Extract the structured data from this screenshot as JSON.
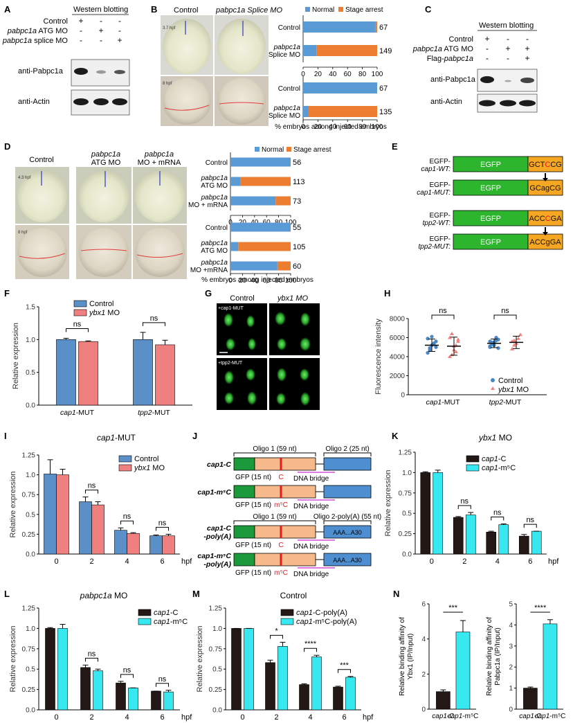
{
  "colors": {
    "normal": "#5b9bd5",
    "arrest": "#ed7d31",
    "control_bar": "#5b8fc7",
    "ybx1_bar": "#f08080",
    "cap1c_bar": "#231815",
    "cap1m_bar": "#38e8f0",
    "egfp_green": "#2db52d",
    "motif_orange": "#f5a623",
    "oligo_green": "#1a9a3a",
    "oligo_orange": "#f5b98c",
    "oligo_blue": "#4d8fd1",
    "bridge_magenta": "#e07ae0",
    "site_red": "#e41a1c"
  },
  "panelA": {
    "label": "A",
    "header": "Western blotting",
    "rows": [
      {
        "name": "Control",
        "marks": [
          "+",
          "-",
          "-"
        ]
      },
      {
        "name": "pabpc1a ATG MO",
        "marks": [
          "-",
          "+",
          "-"
        ]
      },
      {
        "name": "pabpc1a splice MO",
        "marks": [
          "-",
          "-",
          "+"
        ]
      }
    ],
    "blots": [
      "anti-Pabpc1a",
      "anti-Actin"
    ]
  },
  "panelB": {
    "label": "B",
    "col1": "Control",
    "col2": "pabpc1a Splice MO",
    "time1": "3.7 hpf",
    "time2": "8 hpf",
    "legend": [
      "Normal",
      "Stage arrest"
    ],
    "xlabel": "% embryos among injected embryos",
    "ticks": [
      "0",
      "20",
      "40",
      "60",
      "80",
      "100"
    ]
  },
  "panelC": {
    "label": "C",
    "header": "Western blotting",
    "rows": [
      {
        "name": "Control",
        "marks": [
          "+",
          "-",
          "-"
        ]
      },
      {
        "name": "pabpc1a ATG MO",
        "marks": [
          "-",
          "+",
          "+"
        ]
      },
      {
        "name": "Flag-pabpc1a",
        "marks": [
          "-",
          "-",
          "+"
        ]
      }
    ],
    "blots": [
      "anti-Pabpc1a",
      "anti-Actin"
    ]
  },
  "panelD": {
    "label": "D",
    "col1": "Control",
    "col2": "pabpc1a ATG MO",
    "col3": "pabpc1a MO + mRNA",
    "time1": "4.3 hpf",
    "time2": "8 hpf",
    "legend": [
      "Normal",
      "Stage arrest"
    ],
    "xlabel": "% embryos among injected embryos",
    "ticks": [
      "0",
      "20",
      "40",
      "60",
      "80",
      "100"
    ]
  },
  "panelE": {
    "label": "E",
    "constructs": [
      {
        "name1": "EGFP-",
        "name2": "cap1-WT:",
        "box": "EGFP",
        "motif_a": "GCT",
        "motif_b": "C",
        "motif_c": "CG"
      },
      {
        "name1": "EGFP-",
        "name2": "cap1-MUT:",
        "box": "EGFP",
        "motif_a": "GCag",
        "motif_b": "",
        "motif_c": "CG"
      },
      {
        "name1": "EGFP-",
        "name2": "tpp2-WT:",
        "box": "EGFP",
        "motif_a": "ACC",
        "motif_b": "C",
        "motif_c": "GA"
      },
      {
        "name1": "EGFP-",
        "name2": "tpp2-MUT:",
        "box": "EGFP",
        "motif_a": "ACCg",
        "motif_b": "",
        "motif_c": "GA"
      }
    ]
  },
  "panelG": {
    "label": "G",
    "col1": "Control",
    "col2": "ybx1 MO",
    "row1": "+cap1-MUT",
    "row2": "+tpp2-MUT"
  },
  "panelJ": {
    "label": "J",
    "oligo1": "Oligo 1 (59 nt)",
    "oligo2": "Oligo 2 (25 nt)",
    "oligo2a": "Oligo 2-poly(A) (55 nt)",
    "gfp": "GFP (15 nt)",
    "bridge": "DNA bridge",
    "polya": "AAA...A30",
    "constructs": [
      {
        "name": "cap1-C",
        "site": "C"
      },
      {
        "name": "cap1-m5C",
        "site": "m5C"
      },
      {
        "name": "cap1-C-poly(A)",
        "site": "C"
      },
      {
        "name": "cap1-m5C-poly(A)",
        "site": "m5C"
      }
    ]
  },
  "chart_data": [
    {
      "panel": "B-top",
      "type": "bar",
      "orientation": "horizontal",
      "stacked": true,
      "categories": [
        "Control",
        "pabpc1a Splice MO"
      ],
      "series": [
        {
          "name": "Normal",
          "values": [
            98,
            18
          ]
        },
        {
          "name": "Stage arrest",
          "values": [
            2,
            82
          ]
        }
      ],
      "n": [
        "67",
        "149"
      ],
      "xlim": [
        0,
        100
      ]
    },
    {
      "panel": "B-bottom",
      "type": "bar",
      "orientation": "horizontal",
      "stacked": true,
      "categories": [
        "Control",
        "pabpc1a Splice MO"
      ],
      "series": [
        {
          "name": "Normal",
          "values": [
            100,
            7
          ]
        },
        {
          "name": "Stage arrest",
          "values": [
            0,
            93
          ]
        }
      ],
      "n": [
        "67",
        "135"
      ],
      "xlim": [
        0,
        100
      ],
      "xlabel": "% embryos among injected embryos"
    },
    {
      "panel": "D-top",
      "type": "bar",
      "orientation": "horizontal",
      "stacked": true,
      "categories": [
        "Control",
        "pabpc1a ATG MO",
        "pabpc1a MO + mRNA"
      ],
      "series": [
        {
          "name": "Normal",
          "values": [
            100,
            17,
            75
          ]
        },
        {
          "name": "Stage arrest",
          "values": [
            0,
            83,
            25
          ]
        }
      ],
      "n": [
        "56",
        "113",
        "73"
      ],
      "xlim": [
        0,
        100
      ]
    },
    {
      "panel": "D-bottom",
      "type": "bar",
      "orientation": "horizontal",
      "stacked": true,
      "categories": [
        "Control",
        "pabpc1a ATG MO",
        "pabpc1a MO +mRNA"
      ],
      "series": [
        {
          "name": "Normal",
          "values": [
            100,
            13,
            78
          ]
        },
        {
          "name": "Stage arrest",
          "values": [
            0,
            87,
            22
          ]
        }
      ],
      "n": [
        "55",
        "105",
        "60"
      ],
      "xlim": [
        0,
        100
      ],
      "xlabel": "% embryos among injected embryos"
    },
    {
      "panel": "F",
      "type": "bar",
      "categories": [
        "cap1-MUT",
        "tpp2-MUT"
      ],
      "series": [
        {
          "name": "Control",
          "values": [
            1.0,
            1.0
          ],
          "err": [
            0.02,
            0.11
          ]
        },
        {
          "name": "ybx1 MO",
          "values": [
            0.97,
            0.92
          ],
          "err": [
            0.01,
            0.07
          ]
        }
      ],
      "ylabel": "Relative expression",
      "ylim": [
        0,
        1.5
      ],
      "yticks": [
        "0.0",
        "0.5",
        "1.0",
        "1.5"
      ],
      "sig": [
        "ns",
        "ns"
      ]
    },
    {
      "panel": "H",
      "type": "scatter",
      "categories": [
        "cap1-MUT",
        "tpp2-MUT"
      ],
      "series": [
        {
          "name": "Control",
          "mean": [
            5200,
            5400
          ],
          "sd": [
            650,
            450
          ],
          "points": [
            [
              4400,
              4900,
              5200,
              5400,
              5600,
              5900,
              4700,
              6100,
              5300,
              5000
            ],
            [
              5100,
              5300,
              5500,
              5700,
              4900,
              5600,
              5400,
              5200,
              6000,
              5800,
              5000,
              5500
            ]
          ]
        },
        {
          "name": "ybx1 MO",
          "mean": [
            5100,
            5500
          ],
          "sd": [
            950,
            650
          ],
          "points": [
            [
              4000,
              4200,
              4700,
              5200,
              5600,
              6000,
              6400,
              5100,
              4500,
              5800
            ],
            [
              4800,
              5200,
              5400,
              5900,
              6300,
              5600,
              5700
            ]
          ]
        }
      ],
      "ylabel": "Fluorescence intensity",
      "ylim": [
        0,
        8000
      ],
      "yticks": [
        "0",
        "2000",
        "4000",
        "6000",
        "8000"
      ],
      "sig": [
        "ns",
        "ns"
      ]
    },
    {
      "panel": "I",
      "type": "bar",
      "title": "cap1-MUT",
      "categories": [
        "0",
        "2",
        "4",
        "6"
      ],
      "xunit": "hpf",
      "series": [
        {
          "name": "Control",
          "values": [
            1.01,
            0.66,
            0.3,
            0.23
          ],
          "err": [
            0.18,
            0.06,
            0.03,
            0.01
          ]
        },
        {
          "name": "ybx1 MO",
          "values": [
            1.0,
            0.62,
            0.26,
            0.23
          ],
          "err": [
            0.07,
            0.04,
            0.01,
            0.02
          ]
        }
      ],
      "ylabel": "Relative expression",
      "ylim": [
        0,
        1.25
      ],
      "yticks": [
        "0.0",
        "0.25",
        "0.5",
        "0.75",
        "1.0",
        "1.25"
      ],
      "sig": [
        "",
        "ns",
        "ns",
        "ns"
      ]
    },
    {
      "panel": "K",
      "type": "bar",
      "title": "ybx1 MO",
      "categories": [
        "0",
        "2",
        "4",
        "6"
      ],
      "xunit": "hpf",
      "series": [
        {
          "name": "cap1-C",
          "values": [
            1.0,
            0.45,
            0.27,
            0.22
          ],
          "err": [
            0.01,
            0.01,
            0.01,
            0.02
          ]
        },
        {
          "name": "cap1-m5C",
          "values": [
            1.0,
            0.48,
            0.36,
            0.28
          ],
          "err": [
            0.03,
            0.03,
            0.01,
            0.0
          ]
        }
      ],
      "ylabel": "Relative expression",
      "ylim": [
        0,
        1.25
      ],
      "yticks": [
        "0.0",
        "0.25",
        "0.5",
        "0.75",
        "1.0",
        "1.25"
      ],
      "sig": [
        "",
        "ns",
        "ns",
        "ns"
      ]
    },
    {
      "panel": "L",
      "type": "bar",
      "title": "pabpc1a MO",
      "categories": [
        "0",
        "2",
        "4",
        "6"
      ],
      "xunit": "hpf",
      "series": [
        {
          "name": "cap1-C",
          "values": [
            1.0,
            0.52,
            0.33,
            0.23
          ],
          "err": [
            0.01,
            0.03,
            0.02,
            0.0
          ]
        },
        {
          "name": "cap1-m5C",
          "values": [
            1.0,
            0.48,
            0.27,
            0.22
          ],
          "err": [
            0.05,
            0.02,
            0.0,
            0.02
          ]
        }
      ],
      "ylabel": "Relative expression",
      "ylim": [
        0,
        1.25
      ],
      "yticks": [
        "0.0",
        "0.25",
        "0.5",
        "0.75",
        "1.0",
        "1.25"
      ],
      "sig": [
        "",
        "ns",
        "ns",
        "ns"
      ]
    },
    {
      "panel": "M",
      "type": "bar",
      "title": "Control",
      "categories": [
        "0",
        "2",
        "4",
        "6"
      ],
      "xunit": "hpf",
      "series": [
        {
          "name": "cap1-C-poly(A)",
          "values": [
            1.0,
            0.58,
            0.31,
            0.28
          ],
          "err": [
            0.0,
            0.03,
            0.01,
            0.01
          ]
        },
        {
          "name": "cap1-m5C-poly(A)",
          "values": [
            1.0,
            0.78,
            0.65,
            0.4
          ],
          "err": [
            0.0,
            0.05,
            0.02,
            0.01
          ]
        }
      ],
      "ylabel": "Relative expression",
      "ylim": [
        0,
        1.25
      ],
      "yticks": [
        "0.0",
        "0.25",
        "0.5",
        "0.75",
        "1.0",
        "1.25"
      ],
      "sig": [
        "",
        "*",
        "****",
        "***"
      ]
    },
    {
      "panel": "N-left",
      "type": "bar",
      "categories": [
        "cap1-C",
        "cap1-m5C"
      ],
      "values": [
        1.0,
        4.4
      ],
      "err": [
        0.1,
        0.65
      ],
      "ylabel": "Relative binding affinity of Ybx1 (IP/Input)",
      "ylim": [
        0,
        6
      ],
      "yticks": [
        "0",
        "2",
        "4",
        "6"
      ],
      "sig": "***"
    },
    {
      "panel": "N-right",
      "type": "bar",
      "categories": [
        "cap1-C",
        "cap1-m5C"
      ],
      "values": [
        1.0,
        4.05
      ],
      "err": [
        0.05,
        0.2
      ],
      "ylabel": "Relative binding affinity of Pabpc1a (IP/Input)",
      "ylim": [
        0,
        5
      ],
      "yticks": [
        "0",
        "1",
        "2",
        "3",
        "4",
        "5"
      ],
      "sig": "****"
    }
  ]
}
